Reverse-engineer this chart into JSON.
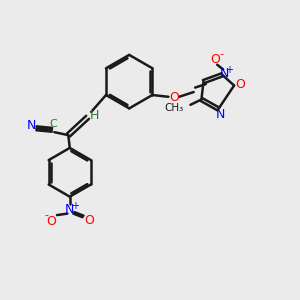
{
  "bg_color": "#ebebeb",
  "bond_color": "#1a1a1a",
  "N_color": "#0000ff",
  "O_color": "#ff0000",
  "C_color": "#2a7a2a",
  "H_color": "#2a7a2a",
  "line_width": 1.8,
  "figsize": [
    3.0,
    3.0
  ],
  "dpi": 100,
  "xlim": [
    0,
    10
  ],
  "ylim": [
    0,
    10
  ]
}
